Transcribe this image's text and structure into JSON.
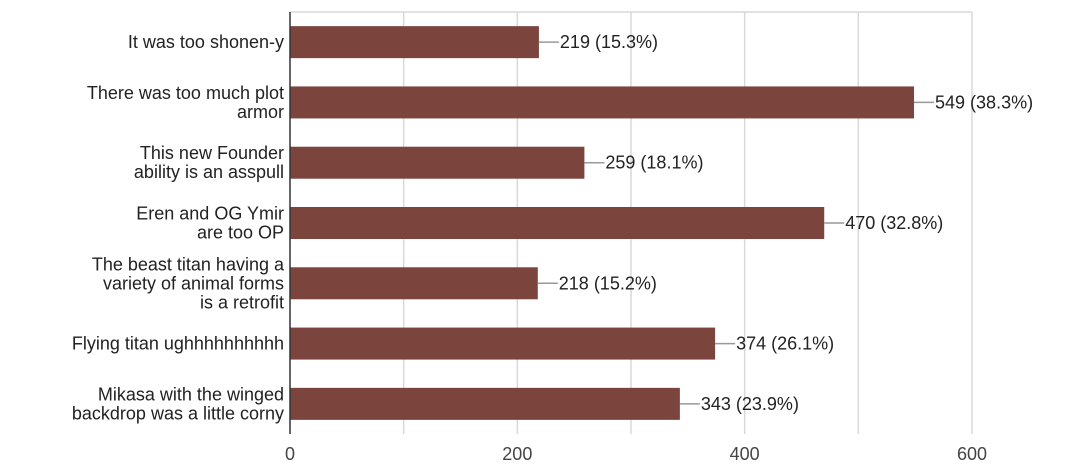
{
  "chart_data": {
    "type": "bar",
    "orientation": "horizontal",
    "categories": [
      [
        "It was too shonen-y"
      ],
      [
        "There was too much plot",
        "armor"
      ],
      [
        "This new Founder",
        "ability is an asspull"
      ],
      [
        "Eren and OG Ymir",
        "are too OP"
      ],
      [
        "The beast titan having a",
        "variety of animal forms",
        "is a retrofit"
      ],
      [
        "Flying titan ughhhhhhhhhh"
      ],
      [
        "Mikasa with the winged",
        "backdrop was a little corny"
      ]
    ],
    "values": [
      219,
      549,
      259,
      470,
      218,
      374,
      343
    ],
    "value_labels": [
      "219 (15.3%)",
      "549 (38.3%)",
      "259 (18.1%)",
      "470 (32.8%)",
      "218 (15.2%)",
      "374 (26.1%)",
      "343 (23.9%)"
    ],
    "xlim": [
      0,
      600
    ],
    "xticks": [
      0,
      200,
      400,
      600
    ],
    "grid": true,
    "colors": {
      "bar": "#7b453d",
      "grid": "#d9d9d9",
      "axis": "#333333",
      "leader": "#999999"
    }
  }
}
